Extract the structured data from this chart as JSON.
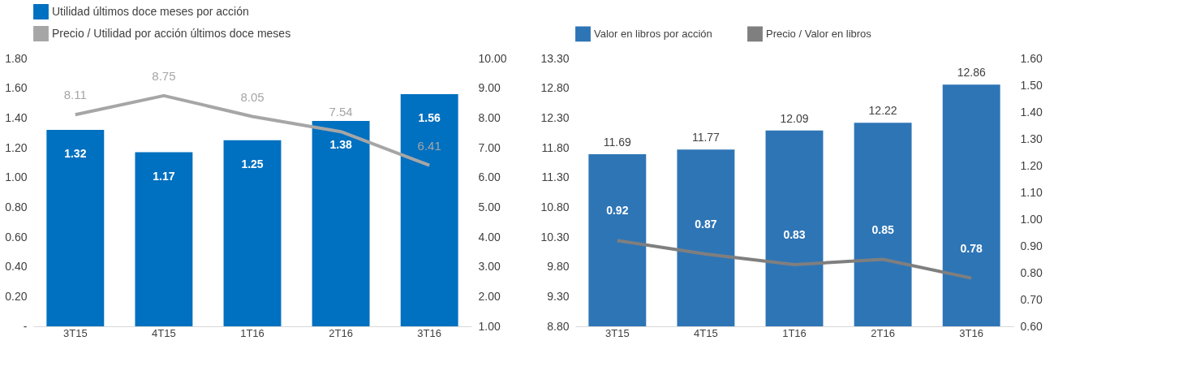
{
  "chart_data": [
    {
      "type": "bar",
      "categories": [
        "3T15",
        "4T15",
        "1T16",
        "2T16",
        "3T16"
      ],
      "series": [
        {
          "name": "Utilidad últimos doce meses por acción",
          "color": "#0070c0",
          "values": [
            1.32,
            1.17,
            1.25,
            1.38,
            1.56
          ]
        },
        {
          "name": "Precio / Utilidad por acción últimos doce meses",
          "type": "line",
          "axis": "y2",
          "color": "#a6a6a6",
          "values": [
            8.11,
            8.75,
            8.05,
            7.54,
            6.41
          ]
        }
      ],
      "ylim": [
        0,
        1.8
      ],
      "yticks": [
        {
          "value": 0,
          "label": "-"
        },
        {
          "value": 0.2,
          "label": "0.20"
        },
        {
          "value": 0.4,
          "label": "0.40"
        },
        {
          "value": 0.6,
          "label": "0.60"
        },
        {
          "value": 0.8,
          "label": "0.80"
        },
        {
          "value": 1.0,
          "label": "1.00"
        },
        {
          "value": 1.2,
          "label": "1.20"
        },
        {
          "value": 1.4,
          "label": "1.40"
        },
        {
          "value": 1.6,
          "label": "1.60"
        },
        {
          "value": 1.8,
          "label": "1.80"
        }
      ],
      "y2lim": [
        1,
        10
      ],
      "y2ticks": [
        {
          "value": 1,
          "label": "1.00"
        },
        {
          "value": 2,
          "label": "2.00"
        },
        {
          "value": 3,
          "label": "3.00"
        },
        {
          "value": 4,
          "label": "4.00"
        },
        {
          "value": 5,
          "label": "5.00"
        },
        {
          "value": 6,
          "label": "6.00"
        },
        {
          "value": 7,
          "label": "7.00"
        },
        {
          "value": 8,
          "label": "8.00"
        },
        {
          "value": 9,
          "label": "9.00"
        },
        {
          "value": 10,
          "label": "10.00"
        }
      ],
      "data_labels": true,
      "grid": false,
      "legend": "top"
    },
    {
      "type": "bar",
      "categories": [
        "3T15",
        "4T15",
        "1T16",
        "2T16",
        "3T16"
      ],
      "series": [
        {
          "name": "Valor en libros por acción",
          "color": "#2e75b6",
          "values": [
            11.69,
            11.77,
            12.09,
            12.22,
            12.86
          ]
        },
        {
          "name": "Precio / Valor en libros",
          "type": "line",
          "axis": "y2",
          "color": "#7f7f7f",
          "values": [
            0.92,
            0.87,
            0.83,
            0.85,
            0.78
          ]
        }
      ],
      "ylim": [
        8.8,
        13.3
      ],
      "yticks": [
        {
          "value": 8.8,
          "label": "8.80"
        },
        {
          "value": 9.3,
          "label": "9.30"
        },
        {
          "value": 9.8,
          "label": "9.80"
        },
        {
          "value": 10.3,
          "label": "10.30"
        },
        {
          "value": 10.8,
          "label": "10.80"
        },
        {
          "value": 11.3,
          "label": "11.30"
        },
        {
          "value": 11.8,
          "label": "11.80"
        },
        {
          "value": 12.3,
          "label": "12.30"
        },
        {
          "value": 12.8,
          "label": "12.80"
        },
        {
          "value": 13.3,
          "label": "13.30"
        }
      ],
      "y2lim": [
        0.6,
        1.6
      ],
      "y2ticks": [
        {
          "value": 0.6,
          "label": "0.60"
        },
        {
          "value": 0.7,
          "label": "0.70"
        },
        {
          "value": 0.8,
          "label": "0.80"
        },
        {
          "value": 0.9,
          "label": "0.90"
        },
        {
          "value": 1.0,
          "label": "1.00"
        },
        {
          "value": 1.1,
          "label": "1.10"
        },
        {
          "value": 1.2,
          "label": "1.20"
        },
        {
          "value": 1.3,
          "label": "1.30"
        },
        {
          "value": 1.4,
          "label": "1.40"
        },
        {
          "value": 1.5,
          "label": "1.50"
        },
        {
          "value": 1.6,
          "label": "1.60"
        }
      ],
      "data_labels": true,
      "grid": false,
      "legend": "top"
    }
  ]
}
